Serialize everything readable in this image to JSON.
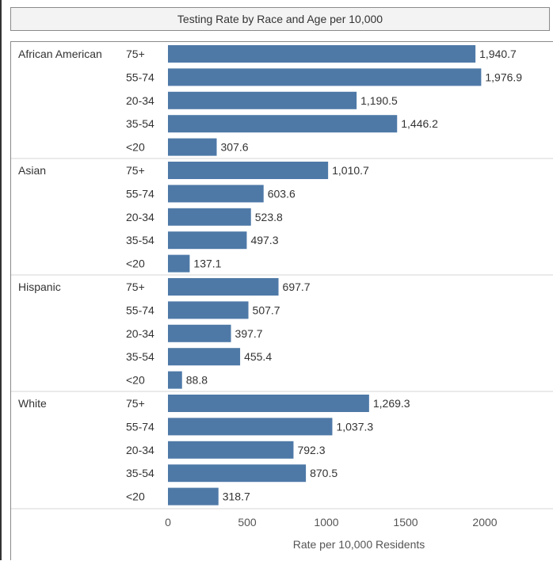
{
  "chart_data": {
    "type": "bar",
    "orientation": "horizontal",
    "title": "Testing Rate by Race and Age per 10,000",
    "xlabel": "Rate per 10,000 Residents",
    "xlim": [
      0,
      2400
    ],
    "xticks": [
      0,
      500,
      1000,
      1500,
      2000
    ],
    "xtick_labels": [
      "0",
      "500",
      "1000",
      "1500",
      "2000"
    ],
    "bar_color": "#4e79a7",
    "groups": [
      {
        "name": "African American",
        "bars": [
          {
            "category": "75+",
            "value": 1940.7,
            "label": "1,940.7"
          },
          {
            "category": "55-74",
            "value": 1976.9,
            "label": "1,976.9"
          },
          {
            "category": "20-34",
            "value": 1190.5,
            "label": "1,190.5"
          },
          {
            "category": "35-54",
            "value": 1446.2,
            "label": "1,446.2"
          },
          {
            "category": "<20",
            "value": 307.6,
            "label": "307.6"
          }
        ]
      },
      {
        "name": "Asian",
        "bars": [
          {
            "category": "75+",
            "value": 1010.7,
            "label": "1,010.7"
          },
          {
            "category": "55-74",
            "value": 603.6,
            "label": "603.6"
          },
          {
            "category": "20-34",
            "value": 523.8,
            "label": "523.8"
          },
          {
            "category": "35-54",
            "value": 497.3,
            "label": "497.3"
          },
          {
            "category": "<20",
            "value": 137.1,
            "label": "137.1"
          }
        ]
      },
      {
        "name": "Hispanic",
        "bars": [
          {
            "category": "75+",
            "value": 697.7,
            "label": "697.7"
          },
          {
            "category": "55-74",
            "value": 507.7,
            "label": "507.7"
          },
          {
            "category": "20-34",
            "value": 397.7,
            "label": "397.7"
          },
          {
            "category": "35-54",
            "value": 455.4,
            "label": "455.4"
          },
          {
            "category": "<20",
            "value": 88.8,
            "label": "88.8"
          }
        ]
      },
      {
        "name": "White",
        "bars": [
          {
            "category": "75+",
            "value": 1269.3,
            "label": "1,269.3"
          },
          {
            "category": "55-74",
            "value": 1037.3,
            "label": "1,037.3"
          },
          {
            "category": "20-34",
            "value": 792.3,
            "label": "792.3"
          },
          {
            "category": "35-54",
            "value": 870.5,
            "label": "870.5"
          },
          {
            "category": "<20",
            "value": 318.7,
            "label": "318.7"
          }
        ]
      }
    ]
  }
}
